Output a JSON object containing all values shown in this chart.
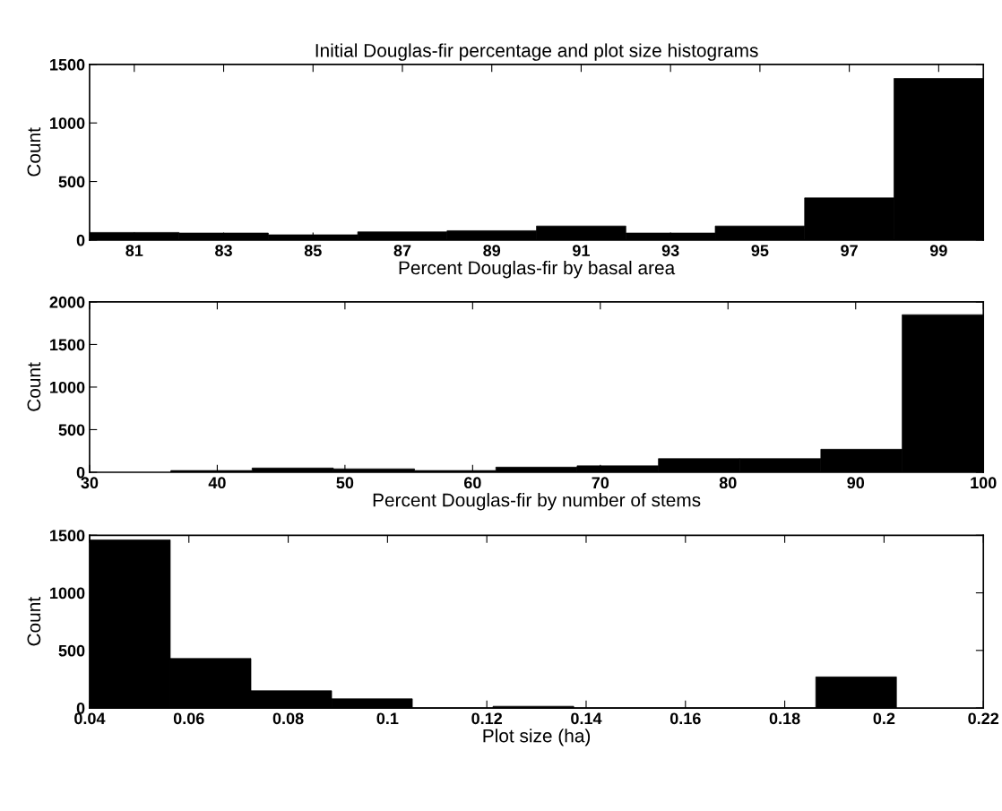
{
  "chart_data": [
    {
      "type": "histogram",
      "title": "Initial Douglas-fir percentage and plot size histograms",
      "xlabel": "Percent Douglas-fir by basal area",
      "ylabel": "Count",
      "bins": [
        80,
        82,
        84,
        86,
        88,
        90,
        92,
        94,
        96,
        98,
        100
      ],
      "values": [
        65,
        60,
        45,
        70,
        80,
        120,
        60,
        120,
        360,
        1380
      ],
      "color": "#000000",
      "xlim": [
        80,
        100
      ],
      "xticks": [
        81,
        83,
        85,
        87,
        89,
        91,
        93,
        95,
        97,
        99
      ],
      "ylim": [
        0,
        1500
      ],
      "yticks": [
        0,
        500,
        1000,
        1500
      ],
      "grid": false
    },
    {
      "type": "histogram",
      "xlabel": "Percent Douglas-fir by number of stems",
      "ylabel": "Count",
      "bins": [
        30,
        36.36,
        42.73,
        49.09,
        55.45,
        61.82,
        68.18,
        74.55,
        80.91,
        87.27,
        93.64,
        100
      ],
      "values": [
        null,
        20,
        50,
        40,
        20,
        60,
        75,
        160,
        160,
        270,
        1850
      ],
      "color": "#000000",
      "xlim": [
        30,
        100
      ],
      "xticks": [
        30,
        40,
        50,
        60,
        70,
        80,
        90,
        100
      ],
      "ylim": [
        0,
        2000
      ],
      "yticks": [
        0,
        500,
        1000,
        1500,
        2000
      ],
      "grid": false
    },
    {
      "type": "histogram",
      "xlabel": "Plot size (ha)",
      "ylabel": "Count",
      "bins": [
        0.04,
        0.05625,
        0.0725,
        0.08875,
        0.105,
        0.12125,
        0.1375,
        0.15375,
        0.17,
        0.18625,
        0.2025
      ],
      "values": [
        1460,
        430,
        150,
        80,
        0,
        15,
        0,
        0,
        0,
        270
      ],
      "color": "#000000",
      "xlim": [
        0.04,
        0.22
      ],
      "xticks": [
        0.04,
        0.06,
        0.08,
        0.1,
        0.12,
        0.14,
        0.16,
        0.18,
        0.2,
        0.22
      ],
      "ylim": [
        0,
        1500
      ],
      "yticks": [
        0,
        500,
        1000,
        1500
      ],
      "grid": false
    }
  ]
}
